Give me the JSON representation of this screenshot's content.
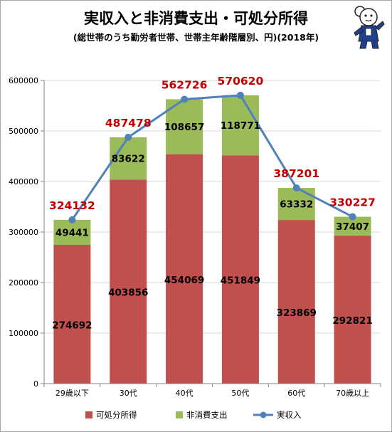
{
  "title": "実収入と非消費支出・可処分所得",
  "subtitle": "(総世帯のうち勤労者世帯、世帯主年齢階層別、円)(2018年)",
  "chart_data": {
    "type": "bar",
    "stacked": true,
    "categories": [
      "29歳以下",
      "30代",
      "40代",
      "50代",
      "60代",
      "70歳以上"
    ],
    "series": [
      {
        "name": "可処分所得",
        "kind": "bar",
        "color": "#c0504d",
        "values": [
          274692,
          403856,
          454069,
          451849,
          323869,
          292821
        ]
      },
      {
        "name": "非消費支出",
        "kind": "bar",
        "color": "#9bbb59",
        "values": [
          49441,
          83622,
          108657,
          118771,
          63332,
          37407
        ]
      },
      {
        "name": "実収入",
        "kind": "line",
        "color": "#4f81bd",
        "values": [
          324132,
          487478,
          562726,
          570620,
          387201,
          330227
        ]
      }
    ],
    "ylim": [
      0,
      600000
    ],
    "yticks": [
      0,
      100000,
      200000,
      300000,
      400000,
      500000,
      600000
    ],
    "grid": true,
    "legend": "bottom"
  },
  "colors": {
    "total_label": "#c00000",
    "axis": "#868686",
    "grid": "#d9d9d9"
  },
  "icons": {
    "mascot": "mascot-character-icon"
  }
}
